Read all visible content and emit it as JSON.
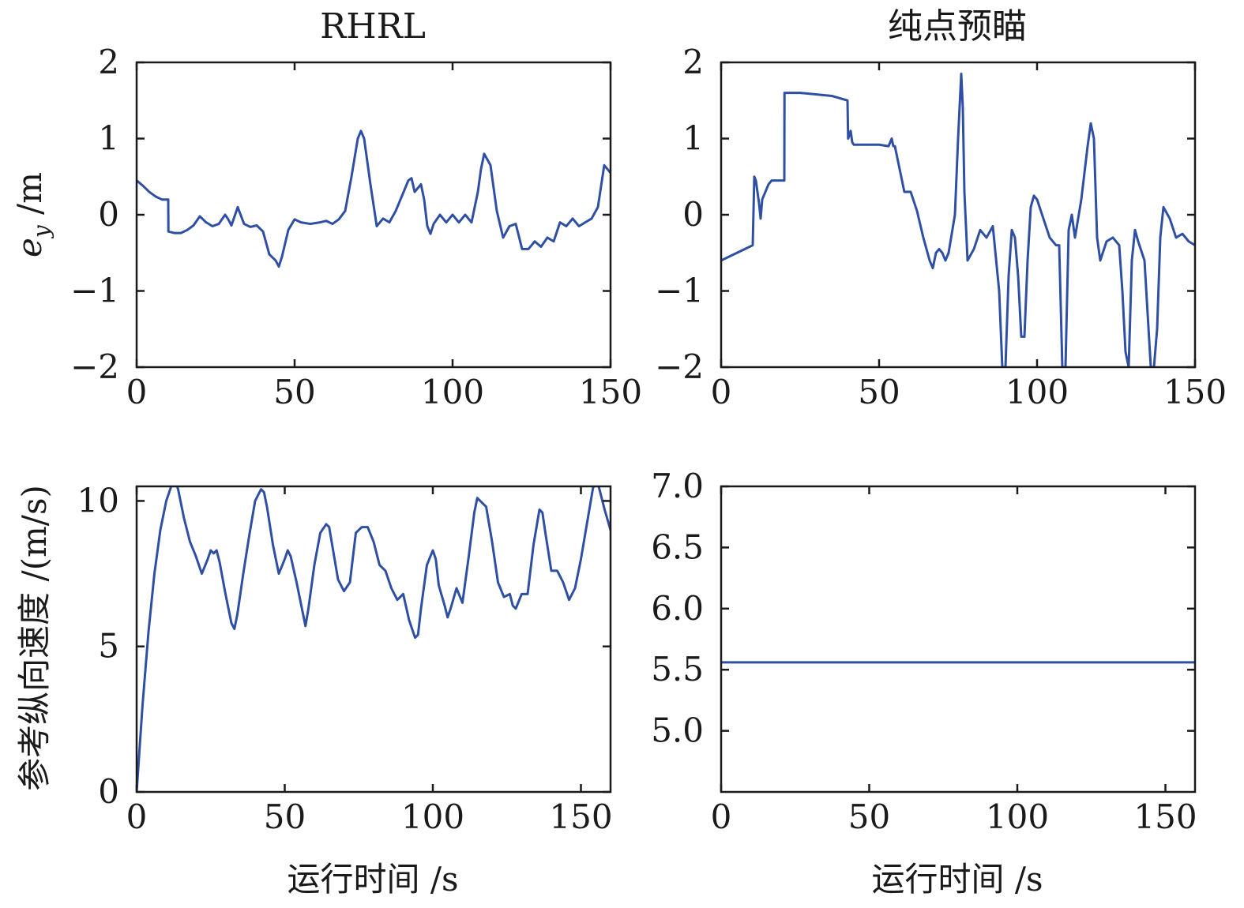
{
  "chart_data": [
    {
      "type": "line",
      "title": "RHRL",
      "xlabel": "",
      "ylabel": "e_y /m",
      "ylabel_parts": {
        "sym": "e",
        "sub": "y",
        "unit": " /m"
      },
      "xlim": [
        0,
        150
      ],
      "ylim": [
        -2,
        2
      ],
      "xticks": [
        0,
        50,
        100,
        150
      ],
      "xtick_labels": [
        "0",
        "50",
        "100",
        "150"
      ],
      "yticks": [
        -2,
        -1,
        0,
        1,
        2
      ],
      "ytick_labels": [
        "−2",
        "−1",
        "0",
        "1",
        "2"
      ],
      "color": "#2e4fa3",
      "series": [
        {
          "x": [
            0,
            2,
            4,
            6,
            8,
            10,
            10.05,
            12,
            14,
            16,
            18,
            20,
            22,
            24,
            26,
            28,
            29,
            30,
            32,
            34,
            36,
            38,
            40,
            42,
            44,
            45,
            46,
            48,
            50,
            52,
            55,
            58,
            60,
            62,
            64,
            66,
            68,
            70,
            71,
            72,
            74,
            76,
            78,
            80,
            82,
            84,
            86,
            87,
            88,
            90,
            91,
            92,
            93,
            94,
            96,
            98,
            100,
            102,
            104,
            106,
            108,
            109,
            110,
            112,
            114,
            116,
            118,
            120,
            122,
            124,
            126,
            128,
            130,
            132,
            134,
            136,
            138,
            140,
            142,
            144,
            146,
            148,
            150
          ],
          "y": [
            0.45,
            0.38,
            0.3,
            0.24,
            0.2,
            0.2,
            -0.22,
            -0.24,
            -0.24,
            -0.2,
            -0.14,
            -0.02,
            -0.1,
            -0.15,
            -0.12,
            0.0,
            -0.06,
            -0.14,
            0.1,
            -0.12,
            -0.16,
            -0.14,
            -0.22,
            -0.52,
            -0.6,
            -0.68,
            -0.55,
            -0.2,
            -0.06,
            -0.1,
            -0.12,
            -0.1,
            -0.08,
            -0.12,
            -0.06,
            0.05,
            0.5,
            1.0,
            1.1,
            1.0,
            0.4,
            -0.15,
            -0.05,
            -0.1,
            0.05,
            0.25,
            0.45,
            0.48,
            0.3,
            0.4,
            0.2,
            -0.15,
            -0.25,
            -0.12,
            0.0,
            -0.1,
            0.0,
            -0.1,
            0.0,
            -0.1,
            0.3,
            0.6,
            0.8,
            0.65,
            0.05,
            -0.3,
            -0.15,
            -0.12,
            -0.45,
            -0.45,
            -0.35,
            -0.42,
            -0.3,
            -0.35,
            -0.1,
            -0.15,
            -0.05,
            -0.15,
            -0.1,
            -0.05,
            0.1,
            0.65,
            0.55
          ]
        }
      ]
    },
    {
      "type": "line",
      "title": "纯点预瞄",
      "xlabel": "",
      "ylabel": "",
      "xlim": [
        0,
        150
      ],
      "ylim": [
        -2,
        2
      ],
      "xticks": [
        0,
        50,
        100,
        150
      ],
      "xtick_labels": [
        "0",
        "50",
        "100",
        "150"
      ],
      "yticks": [
        -2,
        -1,
        0,
        1,
        2
      ],
      "ytick_labels": [
        "−2",
        "−1",
        "0",
        "1",
        "2"
      ],
      "color": "#2e4fa3",
      "series": [
        {
          "x": [
            0,
            5,
            10,
            10.5,
            11,
            12,
            12.5,
            13,
            14,
            15,
            16,
            18,
            20,
            20.05,
            25,
            30,
            35,
            40,
            40.2,
            41,
            41.5,
            42,
            45,
            50,
            53,
            54,
            54.5,
            55,
            57,
            58,
            60,
            62,
            64,
            66,
            67,
            68,
            69,
            70,
            71,
            72,
            74,
            75,
            76,
            76.5,
            77,
            78,
            80,
            82,
            84,
            86,
            88,
            89,
            90,
            91,
            92,
            93,
            94,
            95,
            96,
            97,
            98,
            99,
            100,
            102,
            104,
            106,
            107,
            108,
            109,
            110,
            111,
            112,
            114,
            116,
            117,
            118,
            119,
            120,
            122,
            124,
            126,
            127,
            128,
            129,
            130,
            131,
            132,
            134,
            136,
            137,
            138,
            139,
            140,
            142,
            144,
            146,
            148,
            150
          ],
          "y": [
            -0.6,
            -0.5,
            -0.4,
            0.5,
            0.45,
            0.15,
            -0.05,
            0.2,
            0.3,
            0.4,
            0.45,
            0.45,
            0.45,
            1.6,
            1.6,
            1.58,
            1.56,
            1.5,
            1.0,
            1.1,
            0.95,
            0.92,
            0.92,
            0.92,
            0.9,
            1.0,
            0.9,
            0.9,
            0.5,
            0.3,
            0.3,
            0.05,
            -0.3,
            -0.6,
            -0.7,
            -0.5,
            -0.45,
            -0.5,
            -0.6,
            -0.5,
            0.0,
            1.0,
            1.85,
            1.4,
            0.3,
            -0.6,
            -0.45,
            -0.2,
            -0.3,
            -0.15,
            -1.0,
            -2.0,
            -2.0,
            -0.8,
            -0.2,
            -0.3,
            -0.8,
            -1.6,
            -1.6,
            -0.6,
            0.1,
            0.25,
            0.2,
            -0.05,
            -0.3,
            -0.4,
            -0.4,
            -2.0,
            -2.0,
            -0.2,
            0.0,
            -0.3,
            0.2,
            0.9,
            1.2,
            1.0,
            -0.3,
            -0.6,
            -0.35,
            -0.3,
            -0.4,
            -1.0,
            -1.8,
            -2.0,
            -0.6,
            -0.2,
            -0.35,
            -0.6,
            -2.0,
            -2.0,
            -1.5,
            -0.3,
            0.1,
            -0.05,
            -0.3,
            -0.25,
            -0.35,
            -0.4
          ]
        }
      ]
    },
    {
      "type": "line",
      "title": "",
      "xlabel": "运行时间 /s",
      "ylabel": "参考纵向速度 /(m/s)",
      "xlim": [
        0,
        160
      ],
      "ylim": [
        0,
        10.5
      ],
      "xticks": [
        0,
        50,
        100,
        150
      ],
      "xtick_labels": [
        "0",
        "50",
        "100",
        "150"
      ],
      "yticks": [
        0,
        5,
        10
      ],
      "ytick_labels": [
        "0",
        "5",
        "10"
      ],
      "color": "#2e4fa3",
      "series": [
        {
          "x": [
            0,
            2,
            4,
            6,
            8,
            10,
            12,
            13,
            14,
            16,
            18,
            20,
            22,
            24,
            25,
            26,
            27,
            28,
            30,
            32,
            33,
            34,
            36,
            38,
            40,
            42,
            43,
            44,
            46,
            48,
            50,
            51,
            52,
            54,
            56,
            57,
            58,
            60,
            62,
            64,
            65,
            66,
            68,
            70,
            72,
            74,
            76,
            78,
            80,
            82,
            84,
            85,
            86,
            88,
            90,
            92,
            94,
            95,
            96,
            98,
            100,
            101,
            102,
            104,
            105,
            106,
            108,
            110,
            112,
            114,
            115,
            116,
            118,
            120,
            122,
            124,
            126,
            127,
            128,
            130,
            132,
            134,
            136,
            137,
            138,
            140,
            142,
            144,
            146,
            148,
            150,
            152,
            154,
            155,
            156,
            158,
            160
          ],
          "y": [
            0,
            3.0,
            5.5,
            7.5,
            9.0,
            10.0,
            10.6,
            10.7,
            10.4,
            9.4,
            8.6,
            8.1,
            7.5,
            8.0,
            8.3,
            8.2,
            8.3,
            7.9,
            6.8,
            5.8,
            5.6,
            6.1,
            7.5,
            8.8,
            10.0,
            10.4,
            10.3,
            9.8,
            8.5,
            7.5,
            8.0,
            8.3,
            8.1,
            7.2,
            6.2,
            5.7,
            6.3,
            7.8,
            8.9,
            9.2,
            9.1,
            8.5,
            7.3,
            6.9,
            7.2,
            8.9,
            9.1,
            9.1,
            8.6,
            7.8,
            7.6,
            7.3,
            7.0,
            6.6,
            6.8,
            5.9,
            5.3,
            5.4,
            6.3,
            7.8,
            8.3,
            8.0,
            7.1,
            6.4,
            6.0,
            6.3,
            7.0,
            6.5,
            8.0,
            9.6,
            10.1,
            10.0,
            9.8,
            8.6,
            7.2,
            6.7,
            6.8,
            6.4,
            6.3,
            6.8,
            6.8,
            8.5,
            9.7,
            9.6,
            8.9,
            7.6,
            7.6,
            7.2,
            6.6,
            7.0,
            8.0,
            9.2,
            10.4,
            10.8,
            10.5,
            9.7,
            9.0
          ]
        }
      ]
    },
    {
      "type": "line",
      "title": "",
      "xlabel": "运行时间 /s",
      "ylabel": "",
      "xlim": [
        0,
        160
      ],
      "ylim": [
        4.5,
        7.0
      ],
      "xticks": [
        0,
        50,
        100,
        150
      ],
      "xtick_labels": [
        "0",
        "50",
        "100",
        "150"
      ],
      "yticks": [
        5.0,
        5.5,
        6.0,
        6.5,
        7.0
      ],
      "ytick_labels": [
        "5.0",
        "5.5",
        "6.0",
        "6.5",
        "7.0"
      ],
      "color": "#2e4fa3",
      "series": [
        {
          "x": [
            0,
            160
          ],
          "y": [
            5.56,
            5.56
          ]
        }
      ]
    }
  ]
}
